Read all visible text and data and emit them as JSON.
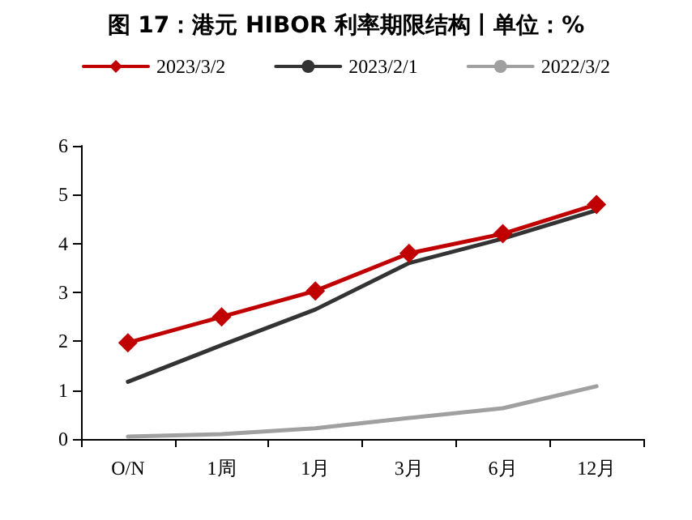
{
  "chart_data": {
    "type": "line",
    "title": "图 17：港元 HIBOR 利率期限结构丨单位：%",
    "categories": [
      "O/N",
      "1周",
      "1月",
      "3月",
      "6月",
      "12月"
    ],
    "series": [
      {
        "name": "2023/3/2",
        "color": "#c00000",
        "marker": "diamond",
        "values": [
          1.97,
          2.5,
          3.03,
          3.8,
          4.2,
          4.8
        ]
      },
      {
        "name": "2023/2/1",
        "color": "#333333",
        "marker": "none",
        "values": [
          1.17,
          1.92,
          2.65,
          3.6,
          4.1,
          4.68
        ]
      },
      {
        "name": "2022/3/2",
        "color": "#a0a0a0",
        "marker": "none",
        "values": [
          0.05,
          0.1,
          0.22,
          0.43,
          0.63,
          1.08
        ]
      }
    ],
    "ylim": [
      0,
      6
    ],
    "yticks": [
      0,
      1,
      2,
      3,
      4,
      5,
      6
    ],
    "grid": false,
    "legend": "top",
    "line_style": "solid"
  }
}
